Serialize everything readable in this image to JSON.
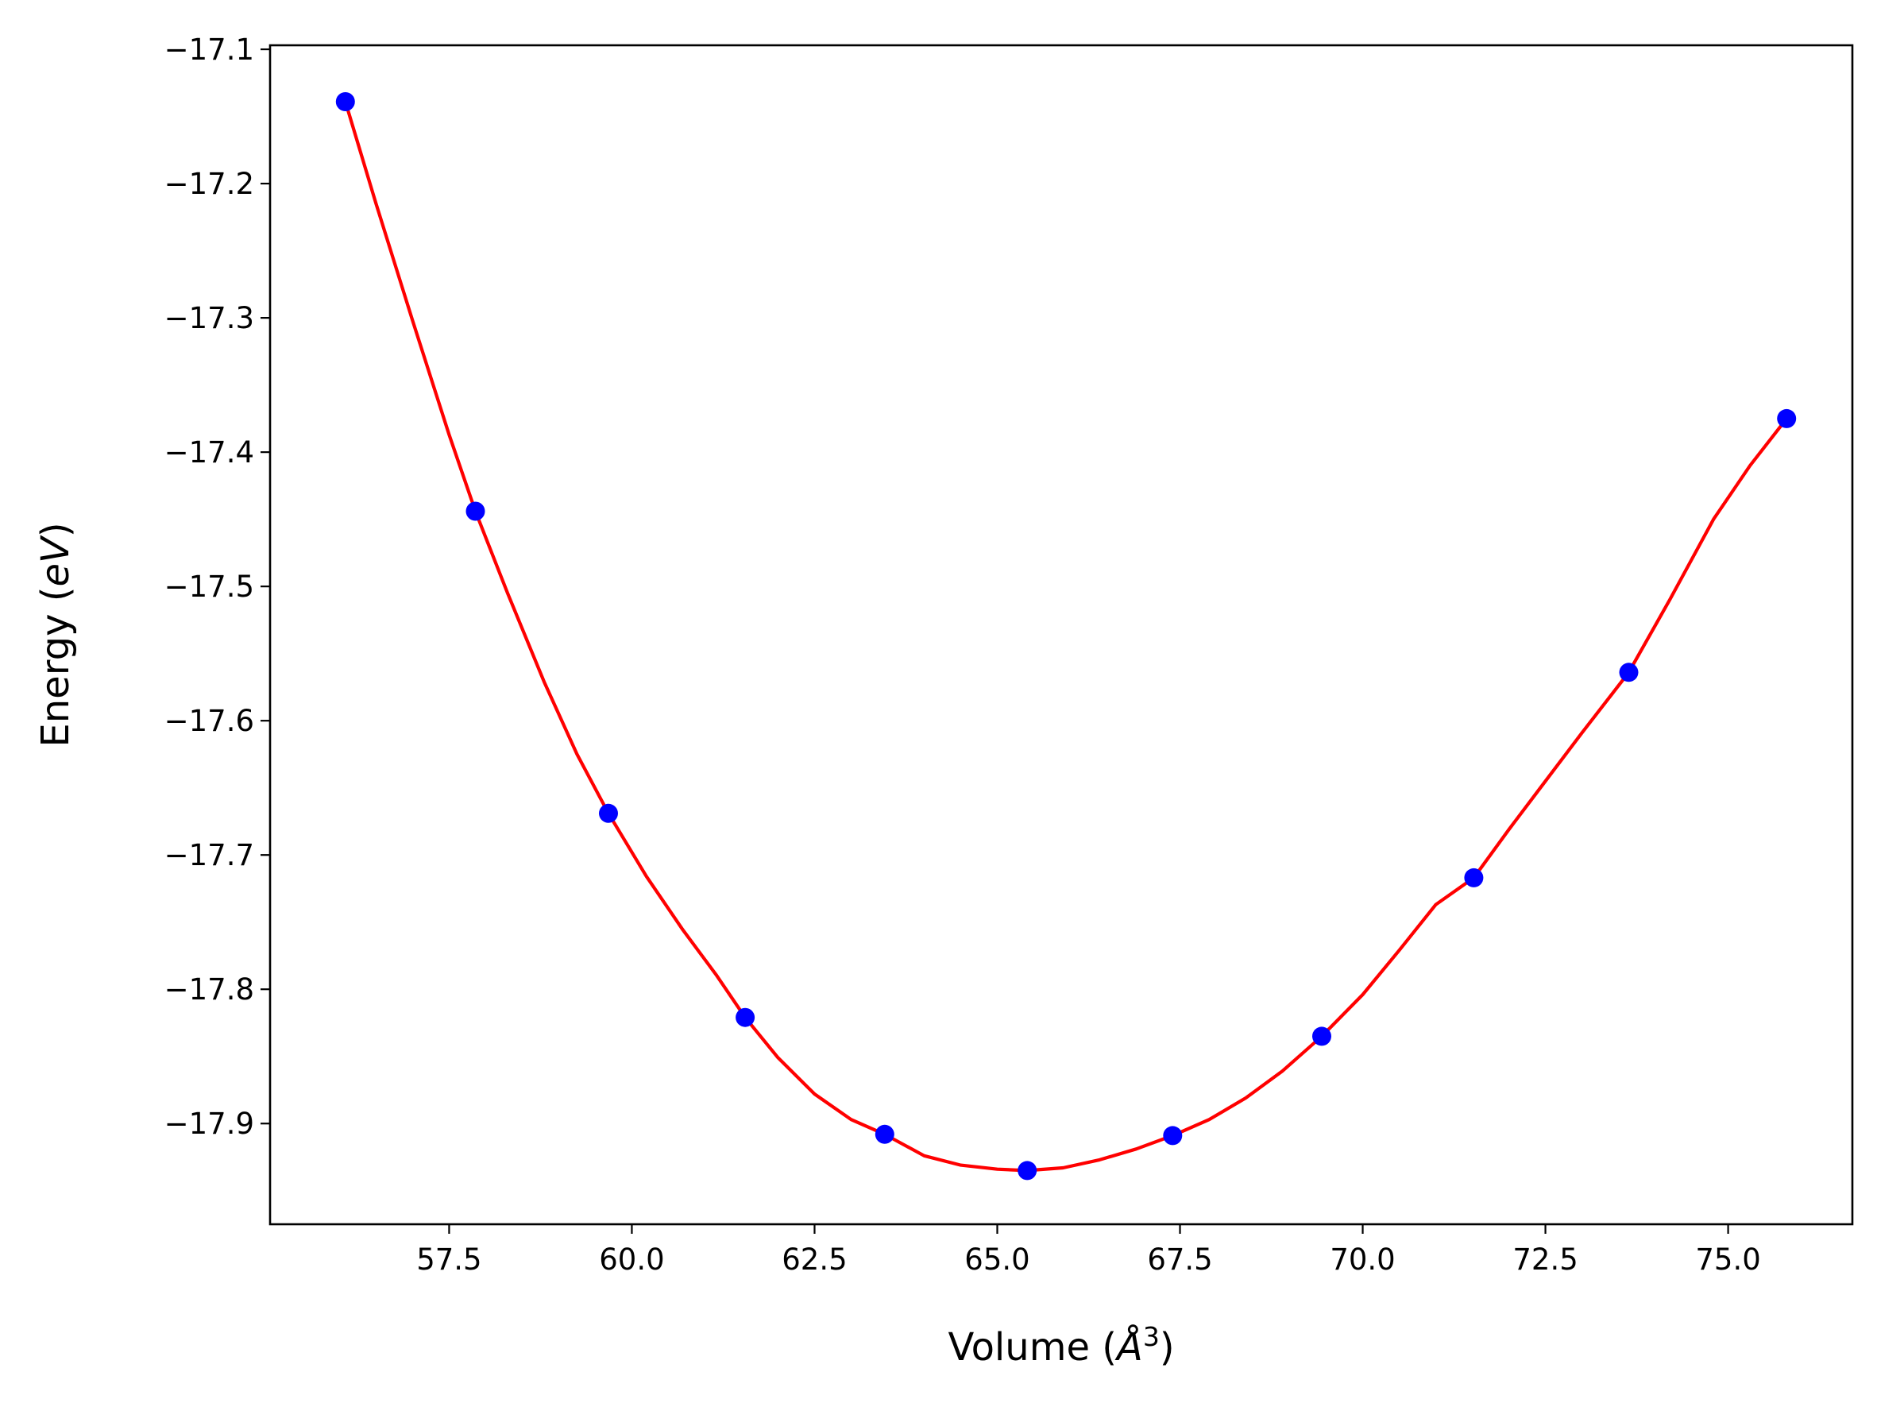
{
  "chart_data": {
    "type": "line",
    "xlabel": "Volume",
    "xlabel_unit": "Å",
    "xlabel_unit_exponent": "3",
    "ylabel": "Energy",
    "ylabel_unit": "eV",
    "xlim": [
      55.05,
      76.7
    ],
    "ylim": [
      -17.975,
      -17.097
    ],
    "xticks": [
      57.5,
      60.0,
      62.5,
      65.0,
      67.5,
      70.0,
      72.5,
      75.0
    ],
    "xtick_labels": [
      "57.5",
      "60.0",
      "62.5",
      "65.0",
      "67.5",
      "70.0",
      "72.5",
      "75.0"
    ],
    "yticks": [
      -17.1,
      -17.2,
      -17.3,
      -17.4,
      -17.5,
      -17.6,
      -17.7,
      -17.8,
      -17.9
    ],
    "ytick_labels": [
      "−17.1",
      "−17.2",
      "−17.3",
      "−17.4",
      "−17.5",
      "−17.6",
      "−17.7",
      "−17.8",
      "−17.9"
    ],
    "grid": false,
    "series": [
      {
        "kind": "points",
        "color": "#0000ff",
        "x": [
          56.08,
          57.86,
          59.68,
          61.55,
          63.46,
          65.41,
          67.4,
          69.44,
          71.52,
          73.64,
          75.8
        ],
        "y": [
          -17.139,
          -17.444,
          -17.669,
          -17.821,
          -17.908,
          -17.935,
          -17.909,
          -17.835,
          -17.717,
          -17.564,
          -17.375
        ]
      },
      {
        "kind": "fit-line",
        "color": "#ff0000",
        "x": [
          56.08,
          56.5,
          57.0,
          57.5,
          57.86,
          58.3,
          58.8,
          59.25,
          59.68,
          60.2,
          60.7,
          61.15,
          61.55,
          62.0,
          62.5,
          63.0,
          63.46,
          64.0,
          64.5,
          65.0,
          65.41,
          65.9,
          66.4,
          66.9,
          67.4,
          67.9,
          68.4,
          68.9,
          69.44,
          70.0,
          70.5,
          71.0,
          71.52,
          72.0,
          72.5,
          73.0,
          73.64,
          74.2,
          74.8,
          75.3,
          75.8
        ],
        "y": [
          -17.139,
          -17.215,
          -17.302,
          -17.387,
          -17.444,
          -17.505,
          -17.571,
          -17.625,
          -17.669,
          -17.716,
          -17.756,
          -17.789,
          -17.821,
          -17.851,
          -17.878,
          -17.897,
          -17.908,
          -17.924,
          -17.931,
          -17.934,
          -17.935,
          -17.933,
          -17.927,
          -17.919,
          -17.909,
          -17.897,
          -17.881,
          -17.861,
          -17.835,
          -17.804,
          -17.771,
          -17.737,
          -17.717,
          -17.681,
          -17.645,
          -17.609,
          -17.564,
          -17.51,
          -17.45,
          -17.41,
          -17.375
        ]
      }
    ]
  }
}
